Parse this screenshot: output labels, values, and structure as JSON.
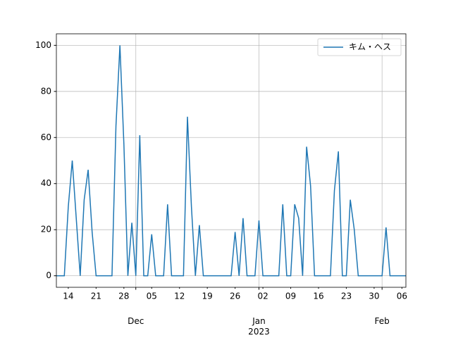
{
  "chart_data": {
    "type": "line",
    "x": [
      "2022-11-11",
      "2022-11-12",
      "2022-11-13",
      "2022-11-14",
      "2022-11-15",
      "2022-11-16",
      "2022-11-17",
      "2022-11-18",
      "2022-11-19",
      "2022-11-20",
      "2022-11-21",
      "2022-11-22",
      "2022-11-23",
      "2022-11-24",
      "2022-11-25",
      "2022-11-26",
      "2022-11-27",
      "2022-11-28",
      "2022-11-29",
      "2022-11-30",
      "2022-12-01",
      "2022-12-02",
      "2022-12-03",
      "2022-12-04",
      "2022-12-05",
      "2022-12-06",
      "2022-12-07",
      "2022-12-08",
      "2022-12-09",
      "2022-12-10",
      "2022-12-11",
      "2022-12-12",
      "2022-12-13",
      "2022-12-14",
      "2022-12-15",
      "2022-12-16",
      "2022-12-17",
      "2022-12-18",
      "2022-12-19",
      "2022-12-20",
      "2022-12-21",
      "2022-12-22",
      "2022-12-23",
      "2022-12-24",
      "2022-12-25",
      "2022-12-26",
      "2022-12-27",
      "2022-12-28",
      "2022-12-29",
      "2022-12-30",
      "2022-12-31",
      "2023-01-01",
      "2023-01-02",
      "2023-01-03",
      "2023-01-04",
      "2023-01-05",
      "2023-01-06",
      "2023-01-07",
      "2023-01-08",
      "2023-01-09",
      "2023-01-10",
      "2023-01-11",
      "2023-01-12",
      "2023-01-13",
      "2023-01-14",
      "2023-01-15",
      "2023-01-16",
      "2023-01-17",
      "2023-01-18",
      "2023-01-19",
      "2023-01-20",
      "2023-01-21",
      "2023-01-22",
      "2023-01-23",
      "2023-01-24",
      "2023-01-25",
      "2023-01-26",
      "2023-01-27",
      "2023-01-28",
      "2023-01-29",
      "2023-01-30",
      "2023-01-31",
      "2023-02-01",
      "2023-02-02",
      "2023-02-03",
      "2023-02-04",
      "2023-02-05",
      "2023-02-06",
      "2023-02-07"
    ],
    "series": [
      {
        "name": "キム・ヘス",
        "color": "#1f77b4",
        "values": [
          0,
          0,
          0,
          30,
          50,
          25,
          0,
          33,
          46,
          19,
          0,
          0,
          0,
          0,
          0,
          65,
          100,
          57,
          0,
          23,
          0,
          61,
          0,
          0,
          18,
          0,
          0,
          0,
          31,
          0,
          0,
          0,
          0,
          69,
          30,
          0,
          22,
          0,
          0,
          0,
          0,
          0,
          0,
          0,
          0,
          19,
          0,
          25,
          0,
          0,
          0,
          24,
          0,
          0,
          0,
          0,
          0,
          31,
          0,
          0,
          31,
          25,
          0,
          56,
          39,
          0,
          0,
          0,
          0,
          0,
          37,
          54,
          0,
          0,
          33,
          20,
          0,
          0,
          0,
          0,
          0,
          0,
          0,
          21,
          0,
          0,
          0,
          0,
          0
        ]
      }
    ],
    "xlim": [
      "2022-11-11",
      "2023-02-07"
    ],
    "xticks": [
      {
        "value": "2022-11-14",
        "label": "14"
      },
      {
        "value": "2022-11-21",
        "label": "21"
      },
      {
        "value": "2022-11-28",
        "label": "28"
      },
      {
        "value": "2022-12-05",
        "label": "05"
      },
      {
        "value": "2022-12-12",
        "label": "12"
      },
      {
        "value": "2022-12-19",
        "label": "19"
      },
      {
        "value": "2022-12-26",
        "label": "26"
      },
      {
        "value": "2023-01-02",
        "label": "02"
      },
      {
        "value": "2023-01-09",
        "label": "09"
      },
      {
        "value": "2023-01-16",
        "label": "16"
      },
      {
        "value": "2023-01-23",
        "label": "23"
      },
      {
        "value": "2023-01-30",
        "label": "30"
      },
      {
        "value": "2023-02-06",
        "label": "06"
      }
    ],
    "xticks_major": [
      {
        "value": "2022-12-01",
        "label": "Dec"
      },
      {
        "value": "2023-01-01",
        "label": "Jan\n2023"
      },
      {
        "value": "2023-02-01",
        "label": "Feb"
      }
    ],
    "ylim": [
      -5,
      105
    ],
    "yticks": [
      0,
      20,
      40,
      60,
      80,
      100
    ],
    "grid": true,
    "legend": "upper right"
  }
}
